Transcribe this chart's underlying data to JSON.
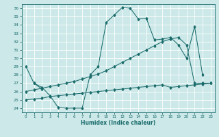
{
  "background_color": "#cce8e8",
  "grid_color": "#b8d8d8",
  "line_color": "#1a6b6b",
  "xlabel": "Humidex (Indice chaleur)",
  "xlim": [
    -0.5,
    23.5
  ],
  "ylim": [
    23.5,
    36.5
  ],
  "xticks": [
    0,
    1,
    2,
    3,
    4,
    5,
    6,
    7,
    8,
    9,
    10,
    11,
    12,
    13,
    14,
    15,
    16,
    17,
    18,
    19,
    20,
    21,
    22,
    23
  ],
  "yticks": [
    24,
    25,
    26,
    27,
    28,
    29,
    30,
    31,
    32,
    33,
    34,
    35,
    36
  ],
  "s1x": [
    0,
    1,
    2,
    3,
    4,
    5,
    6,
    7,
    8,
    9,
    10,
    11,
    12,
    13,
    14,
    15,
    16,
    17,
    18,
    19,
    20,
    21,
    22
  ],
  "s1y": [
    29.0,
    27.0,
    26.5,
    25.5,
    24.1,
    24.0,
    24.0,
    24.0,
    28.0,
    29.0,
    34.3,
    35.2,
    36.1,
    36.0,
    34.7,
    34.8,
    32.2,
    32.3,
    32.5,
    31.6,
    30.0,
    33.8,
    28.0
  ],
  "s2x": [
    0,
    1,
    2,
    3,
    4,
    5,
    6,
    7,
    8,
    9,
    10,
    11,
    12,
    13,
    14,
    15,
    16,
    17,
    18,
    19,
    20,
    21,
    22,
    23
  ],
  "s2y": [
    26.0,
    26.2,
    26.4,
    26.6,
    26.8,
    27.0,
    27.2,
    27.5,
    27.8,
    28.1,
    28.5,
    29.0,
    29.5,
    30.0,
    30.5,
    31.0,
    31.5,
    32.0,
    32.3,
    32.5,
    31.6,
    27.0,
    27.0,
    27.0
  ],
  "s3x": [
    0,
    1,
    2,
    3,
    4,
    5,
    6,
    7,
    8,
    9,
    10,
    11,
    12,
    13,
    14,
    15,
    16,
    17,
    18,
    19,
    20,
    21,
    22,
    23
  ],
  "s3y": [
    25.0,
    25.1,
    25.2,
    25.4,
    25.5,
    25.6,
    25.7,
    25.8,
    25.9,
    26.0,
    26.1,
    26.2,
    26.3,
    26.4,
    26.5,
    26.6,
    26.7,
    26.8,
    26.5,
    26.6,
    26.7,
    26.8,
    26.9,
    27.0
  ],
  "s4x": [
    1,
    2
  ],
  "s4y": [
    27.0,
    26.3
  ]
}
